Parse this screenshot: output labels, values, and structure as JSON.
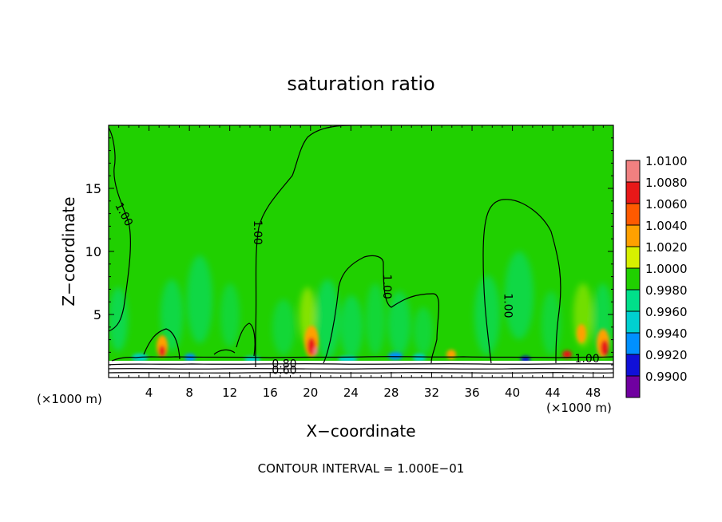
{
  "chart_data": {
    "type": "heatmap",
    "title": "saturation ratio",
    "xlabel": "X−coordinate",
    "ylabel": "Z−coordinate",
    "x_unit_left": "(×1000 m)",
    "x_unit_right": "(×1000 m)",
    "xlim": [
      0,
      50
    ],
    "ylim": [
      0,
      20
    ],
    "xticks": [
      4,
      8,
      12,
      16,
      20,
      24,
      28,
      32,
      36,
      40,
      44,
      48
    ],
    "yticks": [
      5,
      10,
      15
    ],
    "colorbar_levels": [
      "1.0100",
      "1.0080",
      "1.0060",
      "1.0040",
      "1.0020",
      "1.0000",
      "0.9980",
      "0.9960",
      "0.9940",
      "0.9920",
      "0.9900"
    ],
    "colorbar_colors": [
      "#f08080",
      "#e81818",
      "#ff5a00",
      "#ffa000",
      "#d7f000",
      "#20d000",
      "#00e08a",
      "#00d0d0",
      "#0090ff",
      "#1010d8",
      "#7000a0"
    ],
    "contour_labels": [
      {
        "text": "1.00",
        "x": 1.2,
        "z": 12.8,
        "angle": 62
      },
      {
        "text": "1.00",
        "x": 14.4,
        "z": 11.5,
        "angle": 90
      },
      {
        "text": "1.00",
        "x": 27.2,
        "z": 7.2,
        "angle": 90
      },
      {
        "text": "1.00",
        "x": 39.2,
        "z": 5.7,
        "angle": 90
      },
      {
        "text": "1.00",
        "x": 47.4,
        "z": 1.2,
        "angle": 0
      },
      {
        "text": "0.80",
        "x": 17.4,
        "z": 0.8,
        "angle": 0
      },
      {
        "text": "0.60",
        "x": 17.4,
        "z": 0.3,
        "angle": 0
      }
    ],
    "footnote": "CONTOUR INTERVAL = 1.000E−01"
  }
}
